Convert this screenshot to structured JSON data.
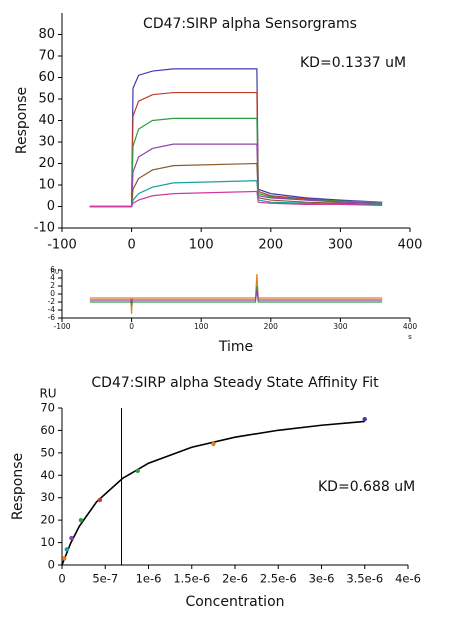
{
  "chart_data": [
    {
      "type": "line",
      "title": "CD47:SIRP alpha Sensorgrams",
      "ylabel": "Response",
      "annotation": "KD=0.1337 uM",
      "xlim": [
        -100,
        400
      ],
      "xticks": [
        -100,
        0,
        100,
        200,
        300,
        400
      ],
      "ylim": [
        -10,
        90
      ],
      "yticks": [
        -10,
        0,
        10,
        20,
        30,
        40,
        50,
        60,
        70,
        80
      ],
      "x": [
        -60,
        0,
        2,
        10,
        30,
        60,
        180,
        182,
        200,
        250,
        300,
        360
      ],
      "series": [
        {
          "color": "#3b3bb0",
          "values": [
            0,
            0,
            55,
            61,
            63,
            64,
            64,
            8,
            6,
            4,
            3,
            2
          ]
        },
        {
          "color": "#c0392b",
          "values": [
            0,
            0,
            42,
            49,
            52,
            53,
            53,
            7,
            5,
            3.5,
            2.5,
            2
          ]
        },
        {
          "color": "#2e9e3e",
          "values": [
            0,
            0,
            28,
            36,
            40,
            41,
            41,
            6,
            4.5,
            3,
            2.5,
            2
          ]
        },
        {
          "color": "#8e44ad",
          "values": [
            0,
            0,
            16,
            23,
            27,
            29,
            29,
            5,
            4,
            3,
            2,
            1.5
          ]
        },
        {
          "color": "#8a5a2b",
          "values": [
            0,
            0,
            8,
            13,
            17,
            19,
            20,
            4,
            3,
            2,
            1.5,
            1
          ]
        },
        {
          "color": "#16a0a0",
          "values": [
            0,
            0,
            3,
            6,
            9,
            11,
            12,
            3,
            2,
            1.5,
            1,
            1
          ]
        },
        {
          "color": "#d03aa0",
          "values": [
            0,
            0,
            1.5,
            3,
            5,
            6,
            7,
            2,
            1.5,
            1,
            1,
            0.5
          ]
        }
      ]
    },
    {
      "type": "line",
      "xlabel": "Time",
      "y_unit": "RU",
      "x_unit": "s",
      "xlim": [
        -100,
        400
      ],
      "xticks": [
        -100,
        0,
        100,
        200,
        300,
        400
      ],
      "ylim": [
        -6,
        6
      ],
      "yticks": [
        -6,
        -4,
        -2,
        0,
        2,
        4,
        6
      ],
      "x": [
        -60,
        -1,
        0,
        1,
        178,
        180,
        182,
        360
      ],
      "series": [
        {
          "color": "#e67e22",
          "values": [
            -1,
            -1,
            -5,
            -1,
            -1,
            5,
            -1,
            -1
          ]
        },
        {
          "color": "#2e9e3e",
          "values": [
            -2,
            -2,
            -3,
            -2,
            -2,
            2,
            -2,
            -2
          ]
        },
        {
          "color": "#8e44ad",
          "values": [
            -1.5,
            -1.5,
            -2.5,
            -1.5,
            -1.5,
            1,
            -1.5,
            -1.5
          ]
        }
      ]
    },
    {
      "type": "scatter",
      "title": "CD47:SIRP alpha Steady State Affinity Fit",
      "ylabel": "Response",
      "xlabel": "Concentration",
      "y_unit": "RU",
      "annotation": "KD=0.688 uM",
      "xlim": [
        0,
        4e-06
      ],
      "xticks": [
        0,
        {
          "value": 5e-07,
          "label": "5e-7"
        },
        {
          "value": 1e-06,
          "label": "1e-6"
        },
        {
          "value": 1.5e-06,
          "label": "1.5e-6"
        },
        {
          "value": 2e-06,
          "label": "2e-6"
        },
        {
          "value": 2.5e-06,
          "label": "2.5e-6"
        },
        {
          "value": 3e-06,
          "label": "3e-6"
        },
        {
          "value": 3.5e-06,
          "label": "3.5e-6"
        },
        {
          "value": 4e-06,
          "label": "4e-6"
        }
      ],
      "ylim": [
        0,
        70
      ],
      "yticks": [
        0,
        10,
        20,
        30,
        40,
        50,
        60,
        70
      ],
      "x": [
        2.7e-08,
        5.5e-08,
        1.09e-07,
        2.19e-07,
        4.375e-07,
        8.75e-07,
        1.75e-06,
        3.5e-06
      ],
      "values": [
        3,
        7,
        12,
        20,
        29,
        42,
        54,
        65
      ],
      "colors": [
        "#e67e22",
        "#16a0a0",
        "#8e44ad",
        "#2e9e3e",
        "#c0392b",
        "#2e9e3e",
        "#e67e22",
        "#3b3bb0"
      ],
      "reference_x": 6.88e-07,
      "fit": {
        "color": "#000000",
        "x": [
          0,
          1e-07,
          2e-07,
          4e-07,
          7e-07,
          1e-06,
          1.5e-06,
          2e-06,
          2.5e-06,
          3e-06,
          3.5e-06
        ],
        "values": [
          0,
          9.72,
          17.25,
          28.16,
          38.63,
          45.38,
          52.51,
          57.0,
          60.07,
          62.31,
          64.02
        ]
      }
    }
  ]
}
